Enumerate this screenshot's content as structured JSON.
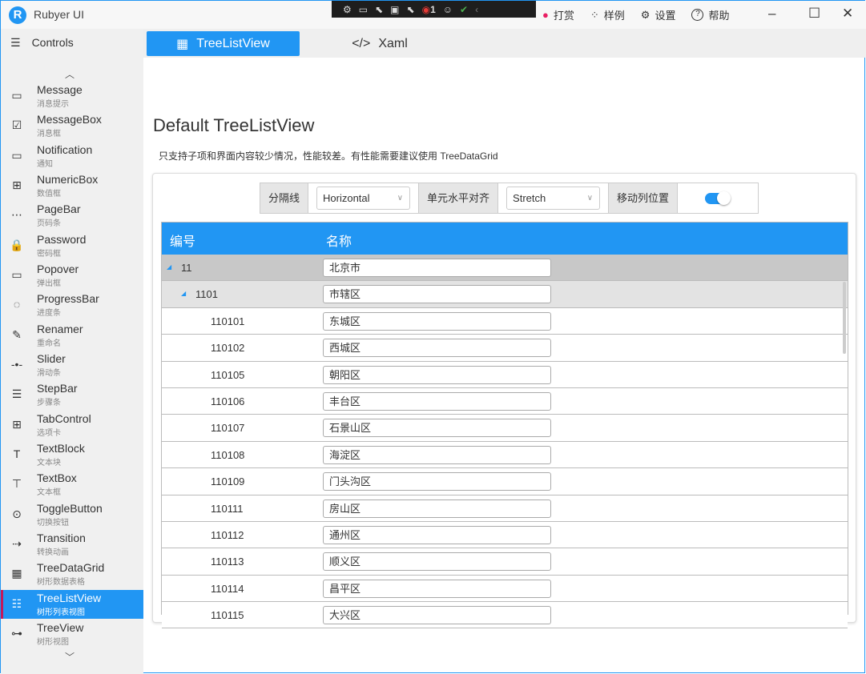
{
  "app": {
    "title": "Rubyer UI",
    "logo_letter": "R"
  },
  "devtools": {
    "badge_count": "1"
  },
  "title_actions": [
    {
      "icon": "reward-icon",
      "label": "打赏"
    },
    {
      "icon": "samples-icon",
      "label": "样例"
    },
    {
      "icon": "gear-icon",
      "label": "设置"
    },
    {
      "icon": "help-icon",
      "label": "帮助"
    }
  ],
  "sidebar": {
    "header": "Controls",
    "items": [
      {
        "label": "Message",
        "sub": "消息提示",
        "icon": "▭"
      },
      {
        "label": "MessageBox",
        "sub": "消息框",
        "icon": "☑"
      },
      {
        "label": "Notification",
        "sub": "通知",
        "icon": "▭"
      },
      {
        "label": "NumericBox",
        "sub": "数值框",
        "icon": "⊞"
      },
      {
        "label": "PageBar",
        "sub": "页码条",
        "icon": "⋯"
      },
      {
        "label": "Password",
        "sub": "密码框",
        "icon": "🔒"
      },
      {
        "label": "Popover",
        "sub": "弹出框",
        "icon": "▭"
      },
      {
        "label": "ProgressBar",
        "sub": "进度条",
        "icon": "◌"
      },
      {
        "label": "Renamer",
        "sub": "重命名",
        "icon": "✎"
      },
      {
        "label": "Slider",
        "sub": "滑动条",
        "icon": "-•-"
      },
      {
        "label": "StepBar",
        "sub": "步骤条",
        "icon": "☰"
      },
      {
        "label": "TabControl",
        "sub": "选项卡",
        "icon": "⊞"
      },
      {
        "label": "TextBlock",
        "sub": "文本块",
        "icon": "T"
      },
      {
        "label": "TextBox",
        "sub": "文本框",
        "icon": "⊤"
      },
      {
        "label": "ToggleButton",
        "sub": "切换按钮",
        "icon": "⊙"
      },
      {
        "label": "Transition",
        "sub": "转换动画",
        "icon": "⇢"
      },
      {
        "label": "TreeDataGrid",
        "sub": "树形数据表格",
        "icon": "▦"
      },
      {
        "label": "TreeListView",
        "sub": "树形列表视图",
        "icon": "☷",
        "active": true
      },
      {
        "label": "TreeView",
        "sub": "树形视图",
        "icon": "⊶"
      }
    ]
  },
  "tabs": [
    {
      "label": "TreeListView",
      "active": true
    },
    {
      "label": "Xaml"
    }
  ],
  "main": {
    "title": "Default TreeListView",
    "description": "只支持子项和界面内容较少情况，性能较差。有性能需要建议使用 TreeDataGrid"
  },
  "toolbar": {
    "gridlines_label": "分隔线",
    "gridlines_value": "Horizontal",
    "halign_label": "单元水平对齐",
    "halign_value": "Stretch",
    "move_col_label": "移动列位置",
    "move_col_on": true
  },
  "grid": {
    "columns": [
      "编号",
      "名称"
    ],
    "rows": [
      {
        "code": "11",
        "name": "北京市",
        "level": 0,
        "expanded": true
      },
      {
        "code": "1101",
        "name": "市辖区",
        "level": 1,
        "expanded": true
      },
      {
        "code": "110101",
        "name": "东城区",
        "level": 2
      },
      {
        "code": "110102",
        "name": "西城区",
        "level": 2
      },
      {
        "code": "110105",
        "name": "朝阳区",
        "level": 2
      },
      {
        "code": "110106",
        "name": "丰台区",
        "level": 2
      },
      {
        "code": "110107",
        "name": "石景山区",
        "level": 2
      },
      {
        "code": "110108",
        "name": "海淀区",
        "level": 2
      },
      {
        "code": "110109",
        "name": "门头沟区",
        "level": 2
      },
      {
        "code": "110111",
        "name": "房山区",
        "level": 2
      },
      {
        "code": "110112",
        "name": "通州区",
        "level": 2
      },
      {
        "code": "110113",
        "name": "顺义区",
        "level": 2
      },
      {
        "code": "110114",
        "name": "昌平区",
        "level": 2
      },
      {
        "code": "110115",
        "name": "大兴区",
        "level": 2
      }
    ]
  },
  "colors": {
    "accent": "#2196f3",
    "indicator": "#c2185b"
  }
}
